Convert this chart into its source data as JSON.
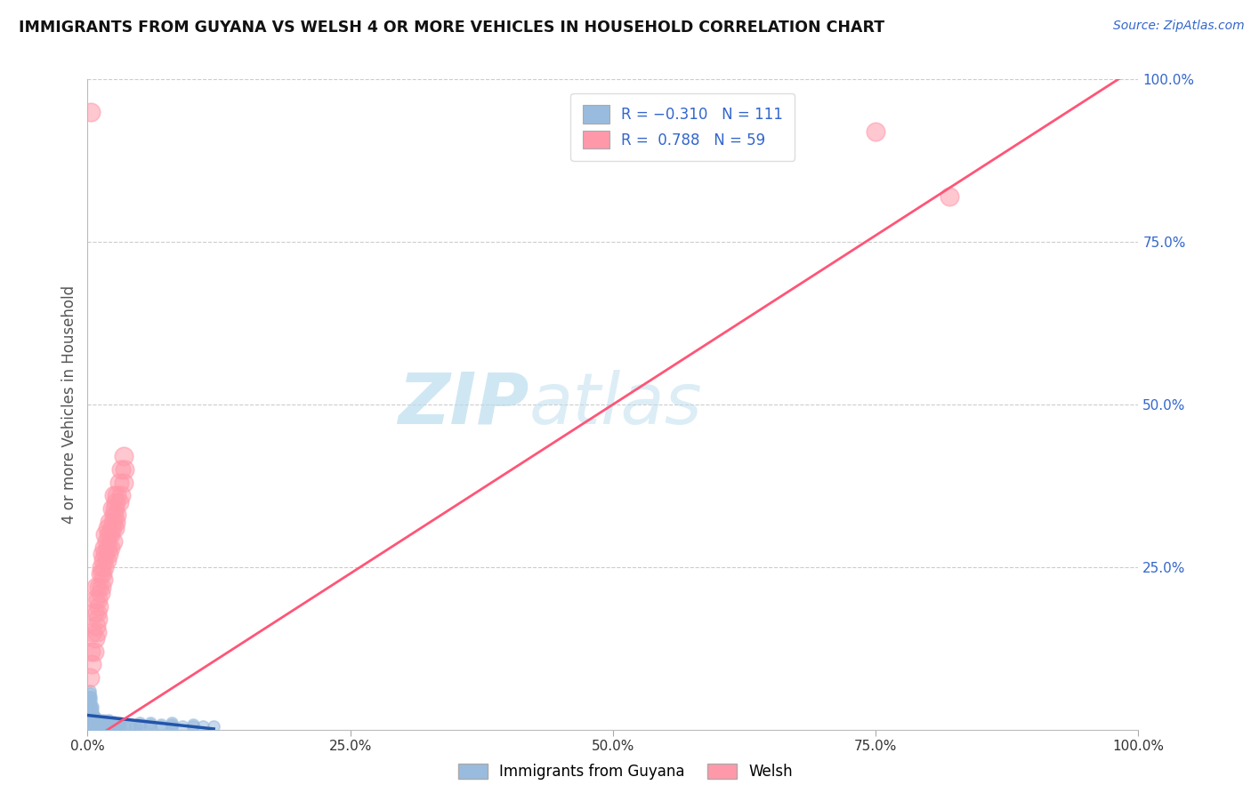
{
  "title": "IMMIGRANTS FROM GUYANA VS WELSH 4 OR MORE VEHICLES IN HOUSEHOLD CORRELATION CHART",
  "source_text": "Source: ZipAtlas.com",
  "ylabel": "4 or more Vehicles in Household",
  "xlim": [
    0,
    1.0
  ],
  "ylim": [
    0,
    1.0
  ],
  "xticks": [
    0.0,
    0.25,
    0.5,
    0.75,
    1.0
  ],
  "yticks": [
    0.25,
    0.5,
    0.75,
    1.0
  ],
  "xtick_labels": [
    "0.0%",
    "25.0%",
    "50.0%",
    "75.0%",
    "100.0%"
  ],
  "ytick_labels": [
    "25.0%",
    "50.0%",
    "75.0%",
    "100.0%"
  ],
  "color_blue": "#99BBDD",
  "color_pink": "#FF99AA",
  "line_color_blue": "#2255AA",
  "line_color_pink": "#FF5577",
  "watermark_zip": "ZIP",
  "watermark_atlas": "atlas",
  "watermark_color": "#BBDDEE",
  "grid_color": "#CCCCCC",
  "background_color": "#FFFFFF",
  "blue_dots": [
    [
      0.001,
      0.018
    ],
    [
      0.001,
      0.022
    ],
    [
      0.001,
      0.015
    ],
    [
      0.001,
      0.025
    ],
    [
      0.001,
      0.03
    ],
    [
      0.001,
      0.01
    ],
    [
      0.001,
      0.012
    ],
    [
      0.001,
      0.008
    ],
    [
      0.001,
      0.005
    ],
    [
      0.001,
      0.035
    ],
    [
      0.001,
      0.04
    ],
    [
      0.001,
      0.045
    ],
    [
      0.002,
      0.02
    ],
    [
      0.002,
      0.015
    ],
    [
      0.002,
      0.025
    ],
    [
      0.002,
      0.03
    ],
    [
      0.002,
      0.01
    ],
    [
      0.002,
      0.008
    ],
    [
      0.002,
      0.035
    ],
    [
      0.002,
      0.04
    ],
    [
      0.002,
      0.005
    ],
    [
      0.002,
      0.05
    ],
    [
      0.002,
      0.055
    ],
    [
      0.002,
      0.06
    ],
    [
      0.003,
      0.018
    ],
    [
      0.003,
      0.022
    ],
    [
      0.003,
      0.012
    ],
    [
      0.003,
      0.028
    ],
    [
      0.003,
      0.01
    ],
    [
      0.003,
      0.008
    ],
    [
      0.003,
      0.035
    ],
    [
      0.003,
      0.005
    ],
    [
      0.003,
      0.045
    ],
    [
      0.003,
      0.05
    ],
    [
      0.004,
      0.02
    ],
    [
      0.004,
      0.015
    ],
    [
      0.004,
      0.025
    ],
    [
      0.004,
      0.01
    ],
    [
      0.004,
      0.008
    ],
    [
      0.004,
      0.035
    ],
    [
      0.004,
      0.005
    ],
    [
      0.005,
      0.018
    ],
    [
      0.005,
      0.022
    ],
    [
      0.005,
      0.012
    ],
    [
      0.005,
      0.028
    ],
    [
      0.005,
      0.01
    ],
    [
      0.005,
      0.008
    ],
    [
      0.005,
      0.035
    ],
    [
      0.005,
      0.005
    ],
    [
      0.006,
      0.02
    ],
    [
      0.006,
      0.015
    ],
    [
      0.006,
      0.01
    ],
    [
      0.006,
      0.008
    ],
    [
      0.006,
      0.005
    ],
    [
      0.007,
      0.018
    ],
    [
      0.007,
      0.012
    ],
    [
      0.007,
      0.008
    ],
    [
      0.007,
      0.005
    ],
    [
      0.008,
      0.015
    ],
    [
      0.008,
      0.01
    ],
    [
      0.008,
      0.008
    ],
    [
      0.008,
      0.005
    ],
    [
      0.009,
      0.012
    ],
    [
      0.009,
      0.008
    ],
    [
      0.009,
      0.005
    ],
    [
      0.01,
      0.01
    ],
    [
      0.01,
      0.008
    ],
    [
      0.01,
      0.005
    ],
    [
      0.012,
      0.008
    ],
    [
      0.012,
      0.005
    ],
    [
      0.015,
      0.005
    ],
    [
      0.015,
      0.008
    ],
    [
      0.018,
      0.005
    ],
    [
      0.02,
      0.005
    ],
    [
      0.02,
      0.01
    ],
    [
      0.022,
      0.005
    ],
    [
      0.025,
      0.005
    ],
    [
      0.025,
      0.008
    ],
    [
      0.028,
      0.005
    ],
    [
      0.03,
      0.005
    ],
    [
      0.035,
      0.005
    ],
    [
      0.04,
      0.005
    ],
    [
      0.045,
      0.005
    ],
    [
      0.05,
      0.005
    ],
    [
      0.06,
      0.005
    ],
    [
      0.07,
      0.005
    ],
    [
      0.08,
      0.005
    ],
    [
      0.09,
      0.005
    ],
    [
      0.1,
      0.005
    ],
    [
      0.11,
      0.005
    ],
    [
      0.12,
      0.005
    ],
    [
      0.015,
      0.01
    ],
    [
      0.02,
      0.012
    ],
    [
      0.025,
      0.01
    ],
    [
      0.03,
      0.008
    ],
    [
      0.05,
      0.008
    ],
    [
      0.06,
      0.008
    ],
    [
      0.07,
      0.008
    ],
    [
      0.08,
      0.008
    ],
    [
      0.015,
      0.015
    ],
    [
      0.02,
      0.015
    ],
    [
      0.025,
      0.012
    ],
    [
      0.03,
      0.01
    ],
    [
      0.04,
      0.008
    ],
    [
      0.05,
      0.01
    ],
    [
      0.06,
      0.01
    ],
    [
      0.08,
      0.01
    ],
    [
      0.1,
      0.008
    ]
  ],
  "pink_dots": [
    [
      0.002,
      0.08
    ],
    [
      0.003,
      0.12
    ],
    [
      0.004,
      0.1
    ],
    [
      0.005,
      0.15
    ],
    [
      0.006,
      0.12
    ],
    [
      0.006,
      0.18
    ],
    [
      0.007,
      0.14
    ],
    [
      0.007,
      0.2
    ],
    [
      0.008,
      0.16
    ],
    [
      0.008,
      0.22
    ],
    [
      0.009,
      0.18
    ],
    [
      0.009,
      0.15
    ],
    [
      0.01,
      0.2
    ],
    [
      0.01,
      0.17
    ],
    [
      0.011,
      0.22
    ],
    [
      0.011,
      0.19
    ],
    [
      0.012,
      0.24
    ],
    [
      0.012,
      0.21
    ],
    [
      0.013,
      0.22
    ],
    [
      0.013,
      0.25
    ],
    [
      0.014,
      0.24
    ],
    [
      0.014,
      0.27
    ],
    [
      0.015,
      0.26
    ],
    [
      0.015,
      0.23
    ],
    [
      0.016,
      0.28
    ],
    [
      0.016,
      0.25
    ],
    [
      0.017,
      0.27
    ],
    [
      0.017,
      0.3
    ],
    [
      0.018,
      0.29
    ],
    [
      0.018,
      0.26
    ],
    [
      0.019,
      0.28
    ],
    [
      0.019,
      0.31
    ],
    [
      0.02,
      0.3
    ],
    [
      0.02,
      0.27
    ],
    [
      0.021,
      0.32
    ],
    [
      0.022,
      0.3
    ],
    [
      0.022,
      0.28
    ],
    [
      0.023,
      0.31
    ],
    [
      0.023,
      0.34
    ],
    [
      0.024,
      0.32
    ],
    [
      0.024,
      0.29
    ],
    [
      0.025,
      0.33
    ],
    [
      0.025,
      0.36
    ],
    [
      0.026,
      0.34
    ],
    [
      0.026,
      0.31
    ],
    [
      0.027,
      0.35
    ],
    [
      0.027,
      0.32
    ],
    [
      0.028,
      0.36
    ],
    [
      0.028,
      0.33
    ],
    [
      0.03,
      0.35
    ],
    [
      0.03,
      0.38
    ],
    [
      0.032,
      0.36
    ],
    [
      0.032,
      0.4
    ],
    [
      0.034,
      0.38
    ],
    [
      0.034,
      0.42
    ],
    [
      0.035,
      0.4
    ],
    [
      0.003,
      0.95
    ],
    [
      0.75,
      0.92
    ],
    [
      0.82,
      0.82
    ]
  ],
  "blue_trend_x": [
    0.0,
    0.12
  ],
  "blue_trend_y": [
    0.022,
    0.001
  ],
  "pink_trend_x": [
    0.0,
    1.0
  ],
  "pink_trend_y": [
    -0.02,
    1.02
  ]
}
